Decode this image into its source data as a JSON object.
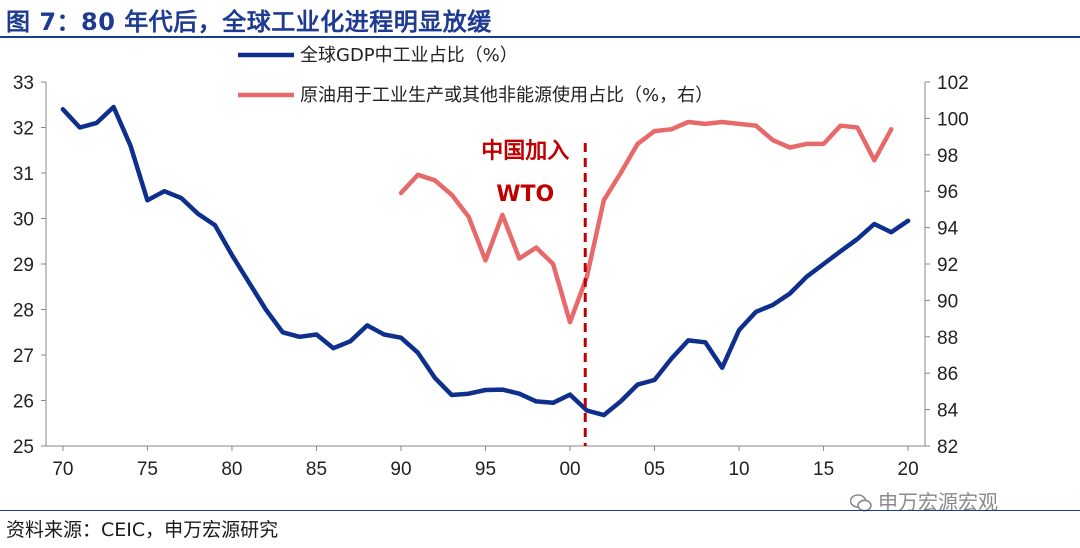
{
  "title": "图 7：80 年代后，全球工业化进程明显放缓",
  "source": "资料来源：CEIC，申万宏源研究",
  "watermark": "申万宏源宏观",
  "colors": {
    "series1": "#0e2f8c",
    "series2": "#e8696a",
    "annotation": "#c00000",
    "title": "#1f3a93"
  },
  "chart_data": {
    "type": "line",
    "x_tick_labels": [
      "70",
      "75",
      "80",
      "85",
      "90",
      "95",
      "00",
      "05",
      "10",
      "15",
      "20"
    ],
    "x_ticks": [
      1970,
      1975,
      1980,
      1985,
      1990,
      1995,
      2000,
      2005,
      2010,
      2015,
      2020
    ],
    "xlim": [
      1969,
      2021
    ],
    "y_left": {
      "ticks": [
        25,
        26,
        27,
        28,
        29,
        30,
        31,
        32,
        33
      ],
      "ylim": [
        25,
        33
      ]
    },
    "y_right": {
      "ticks": [
        82,
        84,
        86,
        88,
        90,
        92,
        94,
        96,
        98,
        100,
        102
      ],
      "ylim": [
        82,
        102
      ]
    },
    "series": [
      {
        "name": "全球GDP中工业占比（%）",
        "axis": "left",
        "x": [
          1970,
          1971,
          1972,
          1973,
          1974,
          1975,
          1976,
          1977,
          1978,
          1979,
          1980,
          1981,
          1982,
          1983,
          1984,
          1985,
          1986,
          1987,
          1988,
          1989,
          1990,
          1991,
          1992,
          1993,
          1994,
          1995,
          1996,
          1997,
          1998,
          1999,
          2000,
          2001,
          2002,
          2003,
          2004,
          2005,
          2006,
          2007,
          2008,
          2009,
          2010,
          2011,
          2012,
          2013,
          2014,
          2015,
          2016,
          2017,
          2018,
          2019,
          2020
        ],
        "values": [
          32.4,
          32.0,
          32.1,
          32.45,
          31.6,
          30.4,
          30.6,
          30.45,
          30.1,
          29.85,
          29.2,
          28.6,
          28.0,
          27.5,
          27.4,
          27.45,
          27.15,
          27.3,
          27.65,
          27.45,
          27.38,
          27.05,
          26.5,
          26.12,
          26.15,
          26.23,
          26.24,
          26.15,
          25.98,
          25.95,
          26.13,
          25.78,
          25.68,
          25.98,
          26.35,
          26.45,
          26.92,
          27.32,
          27.28,
          26.72,
          27.55,
          27.95,
          28.1,
          28.35,
          28.72,
          29.0,
          29.28,
          29.55,
          29.88,
          29.7,
          29.95
        ]
      },
      {
        "name": "原油用于工业生产或其他非能源使用占比（%，右）",
        "axis": "right",
        "x": [
          1990,
          1991,
          1992,
          1993,
          1994,
          1995,
          1996,
          1997,
          1998,
          1999,
          2000,
          2001,
          2002,
          2003,
          2004,
          2005,
          2006,
          2007,
          2008,
          2009,
          2010,
          2011,
          2012,
          2013,
          2014,
          2015,
          2016,
          2017,
          2018,
          2019
        ],
        "values": [
          95.9,
          96.9,
          96.6,
          95.8,
          94.6,
          92.2,
          94.7,
          92.3,
          92.9,
          92.0,
          88.8,
          91.3,
          95.5,
          97.0,
          98.6,
          99.3,
          99.4,
          99.8,
          99.7,
          99.8,
          99.7,
          99.6,
          98.8,
          98.4,
          98.6,
          98.6,
          99.6,
          99.5,
          97.7,
          99.4
        ]
      }
    ],
    "annotation": {
      "lines": [
        "中国加入",
        "WTO"
      ],
      "x": 2000.9
    }
  }
}
